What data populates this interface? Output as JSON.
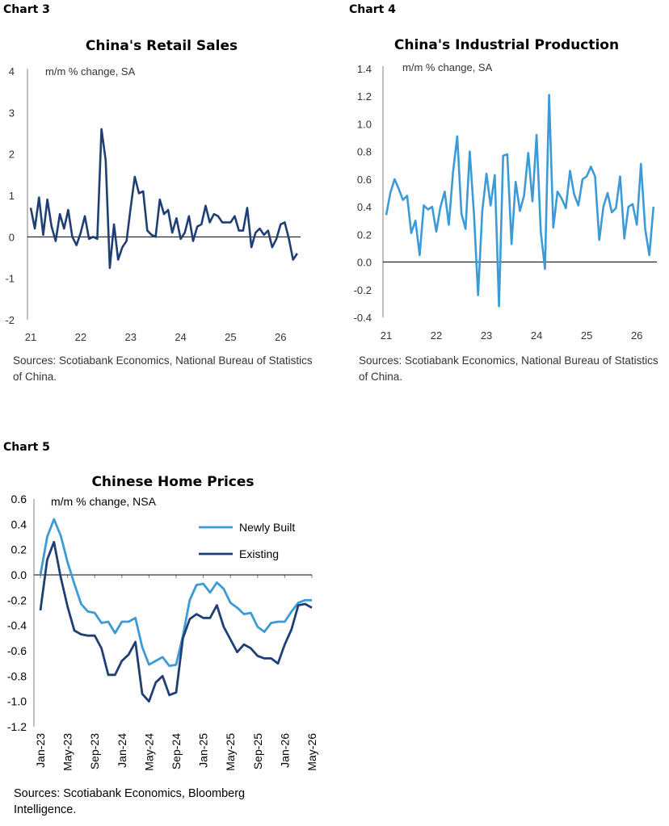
{
  "labels": {
    "chart3": "Chart 3",
    "chart4": "Chart 4",
    "chart5": "Chart 5"
  },
  "sources": {
    "chart3": "Sources: Scotiabank Economics, National Bureau of Statistics of China.",
    "chart4": "Sources: Scotiabank Economics, National Bureau of Statistics of China.",
    "chart5": "Sources: Scotiabank Economics, Bloomberg Intelligence."
  },
  "colors": {
    "retail": "#1f3e73",
    "industrial": "#3c9ad6",
    "newly_built": "#3c9ad6",
    "existing": "#1f3e73",
    "axis": "#7f7f7f"
  },
  "chart_data": [
    {
      "type": "line",
      "title": "China's Retail Sales",
      "subtitle": "m/m % change, SA",
      "xlabel": "",
      "ylabel": "",
      "ylim": [
        -2,
        4
      ],
      "yticks": [
        "4",
        "3",
        "2",
        "1",
        "0",
        "-1",
        "-2"
      ],
      "xticks": [
        "21",
        "22",
        "23",
        "24",
        "25",
        "26"
      ],
      "xrange": [
        2021.0,
        2026.4
      ],
      "grid": false,
      "series": [
        {
          "x": [
            2021.0,
            2021.083,
            2021.167,
            2021.25,
            2021.333,
            2021.417,
            2021.5,
            2021.583,
            2021.667,
            2021.75,
            2021.833,
            2021.917,
            2022.0,
            2022.083,
            2022.167,
            2022.25,
            2022.333,
            2022.417,
            2022.5,
            2022.583,
            2022.667,
            2022.75,
            2022.833,
            2022.917,
            2023.0,
            2023.083,
            2023.167,
            2023.25,
            2023.333,
            2023.417,
            2023.5,
            2023.583,
            2023.667,
            2023.75,
            2023.833,
            2023.917,
            2024.0,
            2024.083,
            2024.167,
            2024.25,
            2024.333,
            2024.417,
            2024.5,
            2024.583,
            2024.667,
            2024.75,
            2024.833,
            2024.917,
            2025.0,
            2025.083,
            2025.167,
            2025.25,
            2025.333,
            2025.417,
            2025.5,
            2025.583,
            2025.667,
            2025.75,
            2025.833,
            2025.917,
            2026.0,
            2026.083,
            2026.167,
            2026.25,
            2026.333
          ],
          "values": [
            0.7,
            0.2,
            0.95,
            0.05,
            0.9,
            0.25,
            -0.1,
            0.55,
            0.2,
            0.65,
            0.0,
            -0.2,
            0.1,
            0.5,
            -0.05,
            0.0,
            -0.05,
            2.6,
            1.85,
            -0.75,
            0.3,
            -0.55,
            -0.25,
            -0.1,
            0.7,
            1.45,
            1.05,
            1.1,
            0.15,
            0.05,
            0.0,
            0.9,
            0.55,
            0.65,
            0.1,
            0.45,
            -0.05,
            0.1,
            0.5,
            -0.1,
            0.25,
            0.3,
            0.75,
            0.35,
            0.55,
            0.5,
            0.35,
            0.35,
            0.35,
            0.5,
            0.15,
            0.15,
            0.7,
            -0.25,
            0.1,
            0.2,
            0.05,
            0.15,
            -0.25,
            -0.05,
            0.3,
            0.35,
            -0.05,
            -0.55,
            -0.4
          ]
        }
      ]
    },
    {
      "type": "line",
      "title": "China's Industrial Production",
      "subtitle": "m/m % change, SA",
      "xlabel": "",
      "ylabel": "",
      "ylim": [
        -0.4,
        1.4
      ],
      "yticks": [
        "1.4",
        "1.2",
        "1.0",
        "0.8",
        "0.6",
        "0.4",
        "0.2",
        "0.0",
        "-0.2",
        "-0.4"
      ],
      "xticks": [
        "21",
        "22",
        "23",
        "24",
        "25",
        "26"
      ],
      "xrange": [
        2021.0,
        2026.4
      ],
      "grid": false,
      "series": [
        {
          "x": [
            2021.0,
            2021.083,
            2021.167,
            2021.25,
            2021.333,
            2021.417,
            2021.5,
            2021.583,
            2021.667,
            2021.75,
            2021.833,
            2021.917,
            2022.0,
            2022.083,
            2022.167,
            2022.25,
            2022.333,
            2022.417,
            2022.5,
            2022.583,
            2022.667,
            2022.75,
            2022.833,
            2022.917,
            2023.0,
            2023.083,
            2023.167,
            2023.25,
            2023.333,
            2023.417,
            2023.5,
            2023.583,
            2023.667,
            2023.75,
            2023.833,
            2023.917,
            2024.0,
            2024.083,
            2024.167,
            2024.25,
            2024.333,
            2024.417,
            2024.5,
            2024.583,
            2024.667,
            2024.75,
            2024.833,
            2024.917,
            2025.0,
            2025.083,
            2025.167,
            2025.25,
            2025.333,
            2025.417,
            2025.5,
            2025.583,
            2025.667,
            2025.75,
            2025.833,
            2025.917,
            2026.0,
            2026.083,
            2026.167,
            2026.25,
            2026.333
          ],
          "values": [
            0.34,
            0.5,
            0.6,
            0.53,
            0.45,
            0.48,
            0.21,
            0.3,
            0.05,
            0.41,
            0.38,
            0.4,
            0.22,
            0.4,
            0.51,
            0.27,
            0.65,
            0.91,
            0.35,
            0.24,
            0.8,
            0.35,
            -0.24,
            0.37,
            0.64,
            0.41,
            0.63,
            -0.32,
            0.77,
            0.78,
            0.13,
            0.58,
            0.37,
            0.48,
            0.79,
            0.44,
            0.92,
            0.22,
            -0.05,
            1.21,
            0.25,
            0.51,
            0.46,
            0.39,
            0.66,
            0.49,
            0.41,
            0.6,
            0.62,
            0.69,
            0.62,
            0.16,
            0.4,
            0.5,
            0.36,
            0.39,
            0.62,
            0.17,
            0.4,
            0.42,
            0.27,
            0.71,
            0.24,
            0.05,
            0.4
          ]
        }
      ]
    },
    {
      "type": "line",
      "title": "Chinese Home Prices",
      "subtitle": "m/m % change, NSA",
      "xlabel": "",
      "ylabel": "",
      "ylim": [
        -1.2,
        0.6
      ],
      "yticks": [
        "0.6",
        "0.4",
        "0.2",
        "0.0",
        "-0.2",
        "-0.4",
        "-0.6",
        "-0.8",
        "-1.0",
        "-1.2"
      ],
      "categories": [
        "Jan-23",
        "Feb-23",
        "Mar-23",
        "Apr-23",
        "May-23",
        "Jun-23",
        "Jul-23",
        "Aug-23",
        "Sep-23",
        "Oct-23",
        "Nov-23",
        "Dec-23",
        "Jan-24",
        "Feb-24",
        "Mar-24",
        "Apr-24",
        "May-24",
        "Jun-24",
        "Jul-24",
        "Aug-24",
        "Sep-24",
        "Oct-24",
        "Nov-24",
        "Dec-24",
        "Jan-25",
        "Feb-25",
        "Mar-25",
        "Apr-25",
        "May-25",
        "Jun-25",
        "Jul-25",
        "Aug-25",
        "Sep-25",
        "Oct-25",
        "Nov-25",
        "Dec-25",
        "Jan-26",
        "Feb-26",
        "Mar-26",
        "Apr-26",
        "May-26"
      ],
      "xticks": [
        "Jan-23",
        "May-23",
        "Sep-23",
        "Jan-24",
        "May-24",
        "Sep-24",
        "Jan-25",
        "May-25",
        "Sep-25",
        "Jan-26",
        "May-26"
      ],
      "legend": "top-right",
      "grid": false,
      "series": [
        {
          "name": "Newly Built",
          "values": [
            0.0,
            0.3,
            0.44,
            0.31,
            0.1,
            -0.07,
            -0.23,
            -0.29,
            -0.3,
            -0.38,
            -0.37,
            -0.46,
            -0.37,
            -0.37,
            -0.34,
            -0.57,
            -0.71,
            -0.68,
            -0.65,
            -0.72,
            -0.71,
            -0.48,
            -0.2,
            -0.08,
            -0.07,
            -0.14,
            -0.06,
            -0.11,
            -0.22,
            -0.26,
            -0.31,
            -0.3,
            -0.41,
            -0.45,
            -0.38,
            -0.37,
            -0.37,
            -0.29,
            -0.22,
            -0.2,
            -0.2
          ]
        },
        {
          "name": "Existing",
          "values": [
            -0.28,
            0.12,
            0.26,
            -0.02,
            -0.25,
            -0.44,
            -0.47,
            -0.48,
            -0.48,
            -0.58,
            -0.79,
            -0.79,
            -0.68,
            -0.63,
            -0.53,
            -0.94,
            -1.0,
            -0.85,
            -0.8,
            -0.95,
            -0.93,
            -0.5,
            -0.35,
            -0.31,
            -0.34,
            -0.34,
            -0.24,
            -0.41,
            -0.51,
            -0.61,
            -0.55,
            -0.58,
            -0.64,
            -0.66,
            -0.66,
            -0.7,
            -0.55,
            -0.43,
            -0.24,
            -0.23,
            -0.26
          ]
        }
      ]
    }
  ]
}
